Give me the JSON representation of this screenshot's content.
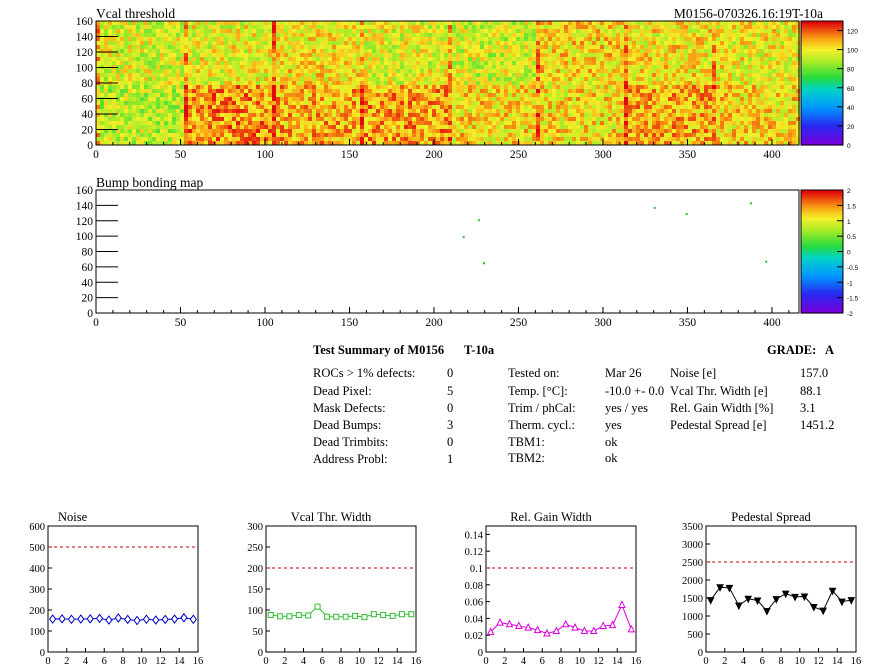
{
  "header": {
    "vcal_title": "Vcal threshold",
    "module_id": "M0156-070326.16:19T-10a",
    "bump_title": "Bump bonding map"
  },
  "summary": {
    "title": "Test Summary of M0156",
    "temp_tag": "T-10a",
    "grade_label": "GRADE:",
    "grade_value": "A",
    "left_col": [
      {
        "label": "ROCs > 1% defects:",
        "value": "0"
      },
      {
        "label": "Dead Pixel:",
        "value": "5"
      },
      {
        "label": "Mask Defects:",
        "value": "0"
      },
      {
        "label": "Dead Bumps:",
        "value": "3"
      },
      {
        "label": "Dead Trimbits:",
        "value": "0"
      },
      {
        "label": "Address Probl:",
        "value": "1"
      }
    ],
    "mid_col": [
      {
        "label": "Tested on:",
        "value": "Mar 26"
      },
      {
        "label": "Temp. [°C]:",
        "value": "-10.0 +- 0.0"
      },
      {
        "label": "Trim / phCal:",
        "value": "yes / yes"
      },
      {
        "label": "Therm. cycl.:",
        "value": "yes"
      },
      {
        "label": "TBM1:",
        "value": "ok"
      },
      {
        "label": "TBM2:",
        "value": "ok"
      }
    ],
    "right_col": [
      {
        "label": "Noise [e]",
        "value": "157.0"
      },
      {
        "label": "Vcal Thr. Width [e]",
        "value": "88.1"
      },
      {
        "label": "Rel. Gain Width [%]",
        "value": "3.1"
      },
      {
        "label": "Pedestal Spread [e]",
        "value": "1451.2"
      }
    ]
  },
  "chart_data": [
    {
      "type": "heatmap",
      "title": "Vcal threshold",
      "xlim": [
        0,
        416
      ],
      "ylim": [
        0,
        160
      ],
      "xticks": [
        "0",
        "50",
        "100",
        "150",
        "200",
        "250",
        "300",
        "350",
        "400"
      ],
      "yticks": [
        "0",
        "20",
        "40",
        "60",
        "80",
        "100",
        "120",
        "140",
        "160"
      ],
      "zticks": [
        "0",
        "20",
        "40",
        "60",
        "80",
        "100",
        "120"
      ],
      "zlim": [
        0,
        130
      ],
      "roc_levels": [
        [
          96,
          99,
          102,
          98,
          95,
          104,
          102,
          100
        ],
        [
          92,
          114,
          110,
          112,
          104,
          103,
          110,
          104
        ]
      ]
    },
    {
      "type": "scatter",
      "title": "Bump bonding map",
      "xlim": [
        0,
        416
      ],
      "ylim": [
        0,
        160
      ],
      "xticks": [
        "0",
        "50",
        "100",
        "150",
        "200",
        "250",
        "300",
        "350",
        "400"
      ],
      "yticks": [
        "0",
        "20",
        "40",
        "60",
        "80",
        "100",
        "120",
        "140",
        "160"
      ],
      "zticks": [
        "-2",
        "-1.5",
        "-1",
        "-0.5",
        "0",
        "0.5",
        "1",
        "1.5",
        "2"
      ],
      "points": [
        {
          "x": 217,
          "y": 100
        },
        {
          "x": 226,
          "y": 122
        },
        {
          "x": 229,
          "y": 66
        },
        {
          "x": 330,
          "y": 138
        },
        {
          "x": 349,
          "y": 130
        },
        {
          "x": 387,
          "y": 144
        },
        {
          "x": 396,
          "y": 68
        }
      ]
    },
    {
      "type": "line",
      "title": "Noise",
      "xlim": [
        0,
        16
      ],
      "ylim": [
        0,
        600
      ],
      "xticks": [
        "0",
        "2",
        "4",
        "6",
        "8",
        "10",
        "12",
        "14",
        "16"
      ],
      "yticks": [
        "0",
        "100",
        "200",
        "300",
        "400",
        "500",
        "600"
      ],
      "threshold": 500,
      "color": "#0000cc",
      "marker": "diamond",
      "x": [
        0.5,
        1.5,
        2.5,
        3.5,
        4.5,
        5.5,
        6.5,
        7.5,
        8.5,
        9.5,
        10.5,
        11.5,
        12.5,
        13.5,
        14.5,
        15.5
      ],
      "values": [
        157,
        158,
        156,
        157,
        158,
        160,
        152,
        162,
        155,
        150,
        156,
        152,
        155,
        157,
        163,
        156
      ]
    },
    {
      "type": "line",
      "title": "Vcal Thr. Width",
      "xlim": [
        0,
        16
      ],
      "ylim": [
        0,
        300
      ],
      "xticks": [
        "0",
        "2",
        "4",
        "6",
        "8",
        "10",
        "12",
        "14",
        "16"
      ],
      "yticks": [
        "0",
        "50",
        "100",
        "150",
        "200",
        "250",
        "300"
      ],
      "threshold": 200,
      "color": "#33bb33",
      "marker": "square",
      "x": [
        0.5,
        1.5,
        2.5,
        3.5,
        4.5,
        5.5,
        6.5,
        7.5,
        8.5,
        9.5,
        10.5,
        11.5,
        12.5,
        13.5,
        14.5,
        15.5
      ],
      "values": [
        88,
        85,
        85,
        88,
        87,
        108,
        84,
        84,
        84,
        86,
        83,
        90,
        88,
        86,
        90,
        90
      ]
    },
    {
      "type": "line",
      "title": "Rel. Gain Width",
      "xlim": [
        0,
        16
      ],
      "ylim": [
        0,
        0.15
      ],
      "xticks": [
        "0",
        "2",
        "4",
        "6",
        "8",
        "10",
        "12",
        "14",
        "16"
      ],
      "yticks": [
        "0",
        "0.02",
        "0.04",
        "0.06",
        "0.08",
        "0.1",
        "0.12",
        "0.14"
      ],
      "threshold": 0.1,
      "color": "#dd00dd",
      "marker": "triangle",
      "x": [
        0.5,
        1.5,
        2.5,
        3.5,
        4.5,
        5.5,
        6.5,
        7.5,
        8.5,
        9.5,
        10.5,
        11.5,
        12.5,
        13.5,
        14.5,
        15.5
      ],
      "values": [
        0.024,
        0.035,
        0.033,
        0.031,
        0.029,
        0.026,
        0.022,
        0.025,
        0.033,
        0.029,
        0.025,
        0.025,
        0.031,
        0.032,
        0.056,
        0.027
      ]
    },
    {
      "type": "line",
      "title": "Pedestal Spread",
      "xlim": [
        0,
        16
      ],
      "ylim": [
        0,
        3500
      ],
      "xticks": [
        "0",
        "2",
        "4",
        "6",
        "8",
        "10",
        "12",
        "14",
        "16"
      ],
      "yticks": [
        "0",
        "500",
        "1000",
        "1500",
        "2000",
        "2500",
        "3000",
        "3500"
      ],
      "threshold": 2500,
      "color": "#000000",
      "marker": "triangle-down",
      "x": [
        0.5,
        1.5,
        2.5,
        3.5,
        4.5,
        5.5,
        6.5,
        7.5,
        8.5,
        9.5,
        10.5,
        11.5,
        12.5,
        13.5,
        14.5,
        15.5
      ],
      "values": [
        1440,
        1800,
        1780,
        1290,
        1480,
        1430,
        1140,
        1470,
        1620,
        1530,
        1540,
        1250,
        1150,
        1700,
        1400,
        1440
      ]
    }
  ]
}
